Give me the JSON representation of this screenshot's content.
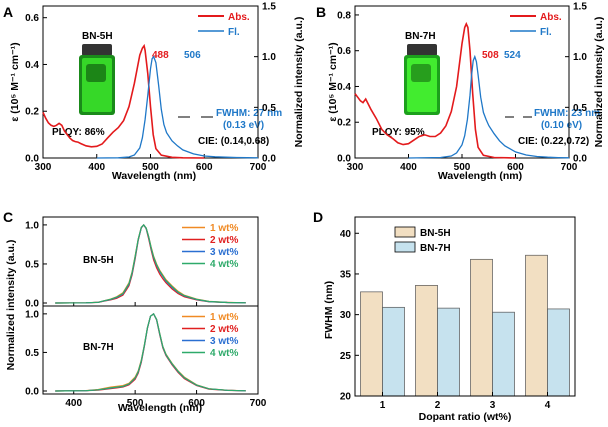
{
  "colors": {
    "abs": "#e31a1c",
    "fl": "#1f78c8",
    "wt1": "#f08a24",
    "wt2": "#e02020",
    "wt3": "#2a6fd1",
    "wt4": "#2eaa6a",
    "bar_bn5h": "#f2dfc2",
    "bar_bn7h": "#c6e2ee",
    "vial_glow": "#3ae02a"
  },
  "chart_data": [
    {
      "panel": "A",
      "type": "line",
      "compound": "BN-5H",
      "xlabel": "Wavelength (nm)",
      "ylabel_left": "ε (10⁵ M⁻¹ cm⁻¹)",
      "ylabel_right": "Normalized intensity (a.u.)",
      "xlim": [
        300,
        700
      ],
      "ylim_left": [
        0,
        0.65
      ],
      "ylim_right": [
        0,
        1.5
      ],
      "xticks": [
        "300",
        "400",
        "500",
        "600",
        "700"
      ],
      "yticks_left": [
        "0.0",
        "0.2",
        "0.4",
        "0.6"
      ],
      "yticks_right": [
        "0.0",
        "0.5",
        "1.0",
        "1.5"
      ],
      "legend": [
        "Abs.",
        "Fl."
      ],
      "abs_peak_label": "488",
      "fl_peak_label": "506",
      "fwhm_label": "FWHM: 27 nm",
      "fwhm_ev_label": "(0.13 eV)",
      "plqy_label": "PLQY: 86%",
      "cie_label": "CIE: (0.14,0.68)",
      "series": [
        {
          "name": "Abs.",
          "x": [
            300,
            305,
            310,
            315,
            320,
            325,
            330,
            335,
            340,
            345,
            350,
            355,
            360,
            365,
            370,
            380,
            390,
            400,
            410,
            420,
            430,
            440,
            450,
            460,
            465,
            470,
            475,
            480,
            485,
            488,
            490,
            495,
            500,
            505,
            510,
            520,
            540,
            560,
            600
          ],
          "y": [
            0.195,
            0.17,
            0.15,
            0.14,
            0.135,
            0.14,
            0.148,
            0.14,
            0.115,
            0.1,
            0.085,
            0.075,
            0.07,
            0.068,
            0.062,
            0.052,
            0.048,
            0.05,
            0.06,
            0.085,
            0.11,
            0.13,
            0.16,
            0.22,
            0.27,
            0.32,
            0.38,
            0.44,
            0.47,
            0.48,
            0.46,
            0.36,
            0.22,
            0.1,
            0.04,
            0.012,
            0.003,
            0.001,
            0.0
          ]
        },
        {
          "name": "Fl.",
          "x": [
            400,
            440,
            460,
            470,
            480,
            485,
            490,
            495,
            500,
            503,
            506,
            510,
            515,
            520,
            525,
            530,
            540,
            550,
            560,
            580,
            600,
            620,
            640,
            660,
            680,
            700
          ],
          "y": [
            0.0,
            0.002,
            0.01,
            0.03,
            0.1,
            0.2,
            0.38,
            0.62,
            0.88,
            0.98,
            1.0,
            0.94,
            0.72,
            0.48,
            0.33,
            0.25,
            0.17,
            0.12,
            0.08,
            0.04,
            0.02,
            0.012,
            0.008,
            0.005,
            0.003,
            0.002
          ]
        }
      ]
    },
    {
      "panel": "B",
      "type": "line",
      "compound": "BN-7H",
      "xlabel": "Wavelength (nm)",
      "ylabel_left": "ε (10⁵ M⁻¹ cm⁻¹)",
      "ylabel_right": "Normalized intensity (a.u.)",
      "xlim": [
        300,
        700
      ],
      "ylim_left": [
        0,
        0.85
      ],
      "ylim_right": [
        0,
        1.5
      ],
      "xticks": [
        "300",
        "400",
        "500",
        "600",
        "700"
      ],
      "yticks_left": [
        "0.0",
        "0.2",
        "0.4",
        "0.6",
        "0.8"
      ],
      "yticks_right": [
        "0.0",
        "0.5",
        "1.0",
        "1.5"
      ],
      "legend": [
        "Abs.",
        "Fl."
      ],
      "abs_peak_label": "508",
      "fl_peak_label": "524",
      "fwhm_label": "FWHM: 23 nm",
      "fwhm_ev_label": "(0.10 eV)",
      "plqy_label": "PLQY: 95%",
      "cie_label": "CIE: (0.22,0.72)",
      "series": [
        {
          "name": "Abs.",
          "x": [
            300,
            305,
            310,
            315,
            320,
            325,
            330,
            340,
            350,
            360,
            370,
            380,
            390,
            400,
            410,
            420,
            430,
            440,
            450,
            460,
            470,
            480,
            490,
            495,
            500,
            505,
            508,
            511,
            515,
            520,
            525,
            530,
            540,
            560,
            600
          ],
          "y": [
            0.36,
            0.34,
            0.32,
            0.31,
            0.33,
            0.3,
            0.27,
            0.22,
            0.16,
            0.13,
            0.11,
            0.085,
            0.075,
            0.08,
            0.1,
            0.12,
            0.13,
            0.12,
            0.12,
            0.14,
            0.18,
            0.26,
            0.4,
            0.52,
            0.64,
            0.73,
            0.75,
            0.73,
            0.6,
            0.36,
            0.16,
            0.06,
            0.015,
            0.003,
            0.0
          ]
        },
        {
          "name": "Fl.",
          "x": [
            400,
            460,
            480,
            490,
            500,
            505,
            510,
            515,
            518,
            521,
            524,
            527,
            530,
            535,
            540,
            545,
            550,
            560,
            570,
            580,
            600,
            620,
            640,
            660,
            680,
            700
          ],
          "y": [
            0.0,
            0.005,
            0.02,
            0.05,
            0.13,
            0.22,
            0.38,
            0.62,
            0.82,
            0.96,
            1.0,
            0.95,
            0.82,
            0.6,
            0.45,
            0.38,
            0.32,
            0.24,
            0.17,
            0.12,
            0.06,
            0.03,
            0.015,
            0.008,
            0.004,
            0.002
          ]
        }
      ]
    },
    {
      "panel": "C",
      "type": "line",
      "xlabel": "Wavelength (nm)",
      "ylabel": "Normalized intensity (a.u.)",
      "xlim": [
        350,
        700
      ],
      "ylim": [
        0,
        1.05
      ],
      "xticks": [
        "400",
        "500",
        "600",
        "700"
      ],
      "yticks": [
        "0.0",
        "0.5",
        "1.0"
      ],
      "subplots": [
        {
          "label": "BN-5H",
          "peak_nm": 514,
          "legend": [
            "1 wt%",
            "2 wt%",
            "3 wt%",
            "4 wt%"
          ],
          "series": [
            {
              "name": "1 wt%",
              "x": [
                370,
                420,
                440,
                450,
                460,
                470,
                480,
                490,
                495,
                500,
                505,
                510,
                514,
                518,
                522,
                526,
                530,
                535,
                540,
                545,
                550,
                560,
                570,
                580,
                600,
                620,
                650,
                680
              ],
              "y": [
                0.0,
                0.003,
                0.01,
                0.03,
                0.05,
                0.08,
                0.13,
                0.26,
                0.4,
                0.6,
                0.82,
                0.97,
                1.0,
                0.96,
                0.85,
                0.72,
                0.6,
                0.5,
                0.42,
                0.36,
                0.3,
                0.22,
                0.15,
                0.1,
                0.05,
                0.02,
                0.008,
                0.002
              ]
            },
            {
              "name": "2 wt%",
              "x": [
                370,
                420,
                440,
                450,
                460,
                470,
                480,
                490,
                495,
                500,
                505,
                510,
                514,
                518,
                522,
                526,
                530,
                535,
                540,
                545,
                550,
                560,
                570,
                580,
                600,
                620,
                650,
                680
              ],
              "y": [
                0.0,
                0.003,
                0.008,
                0.025,
                0.04,
                0.06,
                0.1,
                0.22,
                0.36,
                0.56,
                0.8,
                0.96,
                1.0,
                0.95,
                0.82,
                0.68,
                0.55,
                0.45,
                0.37,
                0.31,
                0.26,
                0.18,
                0.12,
                0.08,
                0.04,
                0.015,
                0.006,
                0.002
              ]
            },
            {
              "name": "3 wt%",
              "x": [
                370,
                420,
                440,
                450,
                460,
                470,
                480,
                490,
                495,
                500,
                505,
                510,
                514,
                518,
                522,
                526,
                530,
                535,
                540,
                545,
                550,
                560,
                570,
                580,
                600,
                620,
                650,
                680
              ],
              "y": [
                0.0,
                0.003,
                0.009,
                0.028,
                0.045,
                0.07,
                0.115,
                0.24,
                0.38,
                0.58,
                0.81,
                0.965,
                1.0,
                0.955,
                0.84,
                0.7,
                0.58,
                0.48,
                0.4,
                0.34,
                0.28,
                0.2,
                0.135,
                0.09,
                0.045,
                0.018,
                0.007,
                0.002
              ]
            },
            {
              "name": "4 wt%",
              "x": [
                370,
                420,
                440,
                450,
                460,
                470,
                480,
                490,
                495,
                500,
                505,
                510,
                514,
                518,
                522,
                526,
                530,
                535,
                540,
                545,
                550,
                560,
                570,
                580,
                600,
                620,
                650,
                680
              ],
              "y": [
                0.0,
                0.003,
                0.009,
                0.03,
                0.048,
                0.075,
                0.12,
                0.25,
                0.39,
                0.59,
                0.815,
                0.968,
                1.0,
                0.958,
                0.845,
                0.71,
                0.59,
                0.49,
                0.41,
                0.35,
                0.29,
                0.21,
                0.14,
                0.095,
                0.047,
                0.019,
                0.007,
                0.002
              ]
            }
          ]
        },
        {
          "label": "BN-7H",
          "peak_nm": 530,
          "legend": [
            "1 wt%",
            "2 wt%",
            "3 wt%",
            "4 wt%"
          ],
          "series": [
            {
              "name": "1 wt%",
              "x": [
                370,
                420,
                440,
                460,
                470,
                480,
                490,
                500,
                505,
                510,
                515,
                520,
                525,
                530,
                535,
                540,
                545,
                550,
                555,
                560,
                570,
                580,
                600,
                620,
                650,
                680
              ],
              "y": [
                0.0,
                0.005,
                0.02,
                0.05,
                0.06,
                0.07,
                0.1,
                0.18,
                0.26,
                0.4,
                0.6,
                0.82,
                0.97,
                1.0,
                0.93,
                0.75,
                0.58,
                0.48,
                0.42,
                0.36,
                0.26,
                0.18,
                0.08,
                0.03,
                0.01,
                0.003
              ]
            },
            {
              "name": "2 wt%",
              "x": [
                370,
                420,
                440,
                460,
                470,
                480,
                490,
                500,
                505,
                510,
                515,
                520,
                525,
                530,
                535,
                540,
                545,
                550,
                555,
                560,
                570,
                580,
                600,
                620,
                650,
                680
              ],
              "y": [
                0.0,
                0.004,
                0.012,
                0.03,
                0.04,
                0.05,
                0.08,
                0.15,
                0.23,
                0.37,
                0.58,
                0.81,
                0.97,
                1.0,
                0.92,
                0.73,
                0.56,
                0.46,
                0.4,
                0.34,
                0.24,
                0.16,
                0.07,
                0.025,
                0.008,
                0.002
              ]
            },
            {
              "name": "3 wt%",
              "x": [
                370,
                420,
                440,
                460,
                470,
                480,
                490,
                500,
                505,
                510,
                515,
                520,
                525,
                530,
                535,
                540,
                545,
                550,
                555,
                560,
                570,
                580,
                600,
                620,
                650,
                680
              ],
              "y": [
                0.0,
                0.004,
                0.015,
                0.038,
                0.048,
                0.058,
                0.09,
                0.165,
                0.245,
                0.385,
                0.59,
                0.815,
                0.97,
                1.0,
                0.925,
                0.74,
                0.57,
                0.47,
                0.41,
                0.35,
                0.25,
                0.17,
                0.075,
                0.028,
                0.009,
                0.002
              ]
            },
            {
              "name": "4 wt%",
              "x": [
                370,
                420,
                440,
                460,
                470,
                480,
                490,
                500,
                505,
                510,
                515,
                520,
                525,
                530,
                535,
                540,
                545,
                550,
                555,
                560,
                570,
                580,
                600,
                620,
                650,
                680
              ],
              "y": [
                0.0,
                0.004,
                0.016,
                0.04,
                0.05,
                0.06,
                0.092,
                0.168,
                0.25,
                0.39,
                0.595,
                0.818,
                0.97,
                1.0,
                0.928,
                0.745,
                0.575,
                0.475,
                0.415,
                0.355,
                0.255,
                0.172,
                0.077,
                0.029,
                0.009,
                0.002
              ]
            }
          ]
        }
      ]
    },
    {
      "panel": "D",
      "type": "bar",
      "xlabel": "Dopant ratio (wt%)",
      "ylabel": "FWHM (nm)",
      "categories": [
        "1",
        "2",
        "3",
        "4"
      ],
      "ylim": [
        20,
        42
      ],
      "yticks": [
        "20",
        "25",
        "30",
        "35",
        "40"
      ],
      "legend": [
        "BN-5H",
        "BN-7H"
      ],
      "series": [
        {
          "name": "BN-5H",
          "values": [
            32.8,
            33.6,
            36.8,
            37.3
          ]
        },
        {
          "name": "BN-7H",
          "values": [
            30.9,
            30.8,
            30.3,
            30.7
          ]
        }
      ]
    }
  ]
}
